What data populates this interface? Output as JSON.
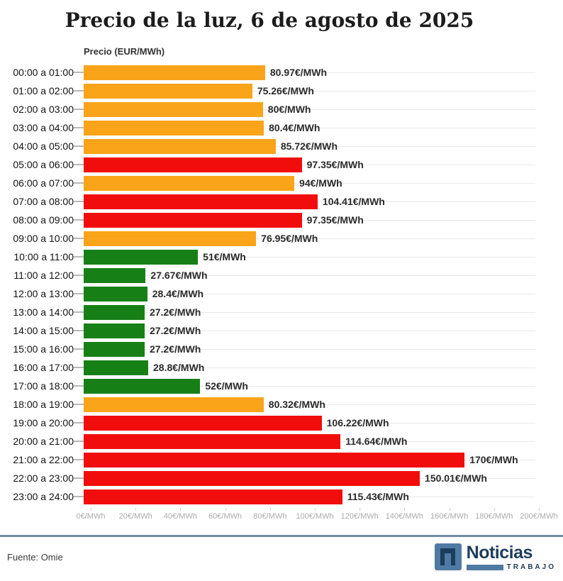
{
  "title": "Precio de la luz, 6 de agosto de 2025",
  "footer": {
    "source": "Fuente: Omie",
    "logo": {
      "name": "Noticias",
      "sub": "TRABAJO",
      "icon": "n-square-icon"
    }
  },
  "colors": {
    "orange": "#FAA41A",
    "red": "#F20D0D",
    "green": "#168016",
    "navy": "#1E3C5C",
    "steel_blue": "#4E7AA3",
    "divider": "#6F8BA1"
  },
  "chart_data": {
    "type": "bar",
    "orientation": "horizontal",
    "title": "Precio de la luz, 6 de agosto de 2025",
    "ylabel": "Precio (EUR/MWh)",
    "xlabel": "",
    "xlim": [
      0,
      200
    ],
    "grid": "horizontal-row-lines",
    "legend": "none",
    "x_ticks": [
      "0€/MWh",
      "20€/MWh",
      "40€/MWh",
      "60€/MWh",
      "80€/MWh",
      "100€/MWh",
      "120€/MWh",
      "140€/MWh",
      "160€/MWh",
      "180€/MWh",
      "200€/MWh"
    ],
    "categories": [
      "00:00 a 01:00",
      "01:00 a 02:00",
      "02:00 a 03:00",
      "03:00 a 04:00",
      "04:00 a 05:00",
      "05:00 a 06:00",
      "06:00 a 07:00",
      "07:00 a 08:00",
      "08:00 a 09:00",
      "09:00 a 10:00",
      "10:00 a 11:00",
      "11:00 a 12:00",
      "12:00 a 13:00",
      "13:00 a 14:00",
      "14:00 a 15:00",
      "15:00 a 16:00",
      "16:00 a 17:00",
      "17:00 a 18:00",
      "18:00 a 19:00",
      "19:00 a 20:00",
      "20:00 a 21:00",
      "21:00 a 22:00",
      "22:00 a 23:00",
      "23:00 a 24:00"
    ],
    "values": [
      80.97,
      75.26,
      80,
      80.4,
      85.72,
      97.35,
      94,
      104.41,
      97.35,
      76.95,
      51,
      27.67,
      28.4,
      27.2,
      27.2,
      27.2,
      28.8,
      52,
      80.32,
      106.22,
      114.64,
      170,
      150.01,
      115.43
    ],
    "value_labels": [
      "80.97€/MWh",
      "75.26€/MWh",
      "80€/MWh",
      "80.4€/MWh",
      "85.72€/MWh",
      "97.35€/MWh",
      "94€/MWh",
      "104.41€/MWh",
      "97.35€/MWh",
      "76.95€/MWh",
      "51€/MWh",
      "27.67€/MWh",
      "28.4€/MWh",
      "27.2€/MWh",
      "27.2€/MWh",
      "27.2€/MWh",
      "28.8€/MWh",
      "52€/MWh",
      "80.32€/MWh",
      "106.22€/MWh",
      "114.64€/MWh",
      "170€/MWh",
      "150.01€/MWh",
      "115.43€/MWh"
    ],
    "bar_colors": [
      "orange",
      "orange",
      "orange",
      "orange",
      "orange",
      "red",
      "orange",
      "red",
      "red",
      "orange",
      "green",
      "green",
      "green",
      "green",
      "green",
      "green",
      "green",
      "green",
      "orange",
      "red",
      "red",
      "red",
      "red",
      "red"
    ]
  }
}
